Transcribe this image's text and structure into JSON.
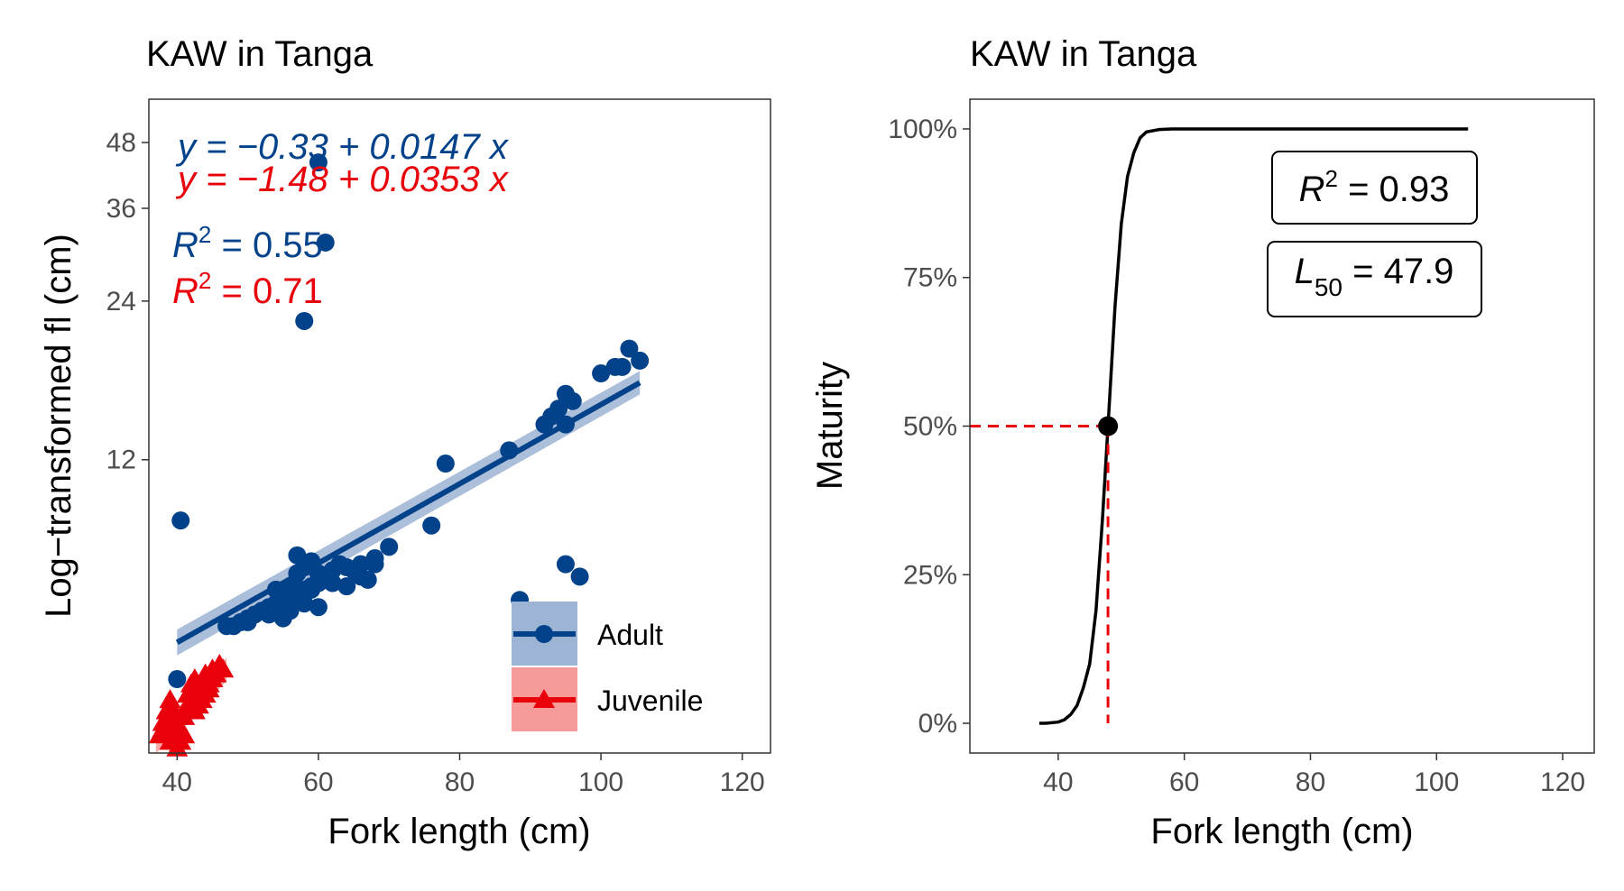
{
  "colors": {
    "adult": "#02428a",
    "juvenile": "#e8000b",
    "adult_band": "#9db4d4",
    "juvenile_band": "#f79a9a",
    "curve": "#000000",
    "ref": "#e8000b"
  },
  "chart_data": [
    {
      "type": "scatter",
      "title": "KAW in Tanga",
      "xlabel": "Fork length (cm)",
      "ylabel": "Log−transformed fl (cm)",
      "xlim": [
        36,
        124
      ],
      "xticks": [
        40,
        60,
        80,
        100,
        120
      ],
      "y_scale": "log",
      "ylim": [
        3.33,
        58
      ],
      "yticks": [
        12,
        24,
        36,
        48
      ],
      "grid": false,
      "legend_position": "bottom-right",
      "equations": [
        {
          "series": "Adult",
          "eq_text": "y = −0.33 + 0.0147 x",
          "r2_label": "R",
          "r2_sup": "2",
          "r2_value": " = 0.55"
        },
        {
          "series": "Juvenile",
          "eq_text": "y = −1.48 + 0.0353 x",
          "r2_label": "R",
          "r2_sup": "2",
          "r2_value": " = 0.71"
        }
      ],
      "series": [
        {
          "name": "Adult",
          "marker": "circle",
          "fit": {
            "from_x": 40,
            "to_x": 105.5,
            "y_start": 5.4,
            "y_end": 16.8
          },
          "x": [
            40.5,
            60,
            61,
            58,
            104,
            105.5,
            102,
            100,
            103,
            95,
            96,
            94,
            93,
            95,
            92,
            87,
            78,
            76,
            70,
            68,
            66,
            64,
            62,
            61,
            60,
            59,
            58,
            57,
            56,
            55,
            54,
            53,
            52,
            51,
            50,
            49,
            48,
            47,
            57,
            58,
            59,
            60,
            61,
            62,
            63,
            64,
            65,
            66,
            67,
            68,
            55,
            56,
            57,
            58,
            59,
            60,
            56,
            57,
            54,
            55,
            53,
            52,
            50,
            95,
            97,
            88.5,
            40
          ],
          "y": [
            9.2,
            44,
            31,
            22,
            19.5,
            18.5,
            18,
            17.5,
            18,
            16,
            15.5,
            15,
            14.5,
            14,
            14,
            12.5,
            11.8,
            9.0,
            8.2,
            7.8,
            7.6,
            7.5,
            7.4,
            7.2,
            7.0,
            6.9,
            6.8,
            6.7,
            6.6,
            6.5,
            6.4,
            6.3,
            6.2,
            6.1,
            6.0,
            5.9,
            5.8,
            5.8,
            7.9,
            7.5,
            7.7,
            7.3,
            7.1,
            7.0,
            7.6,
            6.9,
            7.4,
            7.2,
            7.1,
            7.6,
            6.0,
            6.2,
            6.6,
            6.4,
            6.8,
            6.3,
            6.9,
            7.3,
            6.8,
            6.7,
            6.1,
            6.2,
            5.9,
            7.6,
            7.2,
            6.5,
            4.6
          ]
        },
        {
          "name": "Juvenile",
          "marker": "triangle",
          "fit": {
            "from_x": 37,
            "to_x": 47,
            "y_start": 3.5,
            "y_end": 4.8
          },
          "x": [
            37.5,
            38,
            38.5,
            39,
            39.5,
            40,
            40.5,
            41,
            41,
            40.5,
            39.5,
            39,
            38.5,
            38,
            40,
            41.5,
            42,
            42.5,
            43,
            43.5,
            44,
            44.5,
            45,
            45.5,
            46,
            46.5,
            42,
            43,
            44,
            45,
            44.5,
            43.5,
            42.5,
            41.5,
            40,
            39,
            38.5,
            39.5,
            40,
            41
          ],
          "y": [
            3.6,
            3.8,
            3.7,
            3.5,
            3.6,
            3.4,
            3.7,
            3.9,
            3.6,
            3.5,
            3.9,
            4.1,
            4.0,
            3.7,
            3.8,
            4.3,
            4.5,
            4.6,
            4.4,
            4.5,
            4.7,
            4.5,
            4.8,
            4.7,
            4.9,
            4.8,
            4.2,
            4.1,
            4.3,
            4.6,
            4.4,
            4.2,
            4.0,
            4.1,
            3.9,
            4.2,
            3.8,
            3.6,
            3.7,
            4.0
          ]
        }
      ]
    },
    {
      "type": "line",
      "title": "KAW in Tanga",
      "xlabel": "Fork length (cm)",
      "ylabel": "Maturity",
      "xlim": [
        26,
        125
      ],
      "xticks": [
        40,
        60,
        80,
        100,
        120
      ],
      "ylim": [
        -0.05,
        1.05
      ],
      "yticks": [
        0,
        0.25,
        0.5,
        0.75,
        1.0
      ],
      "ytick_labels": [
        "0%",
        "25%",
        "50%",
        "75%",
        "100%"
      ],
      "grid": false,
      "L50": 47.9,
      "L50_marker_y": 0.5,
      "boxes": [
        {
          "label": "R",
          "sup": "2",
          "value": " = 0.93"
        },
        {
          "label": "L",
          "sub": "50",
          "value": " = 47.9"
        }
      ],
      "series": [
        {
          "name": "",
          "x": [
            37,
            38,
            40,
            41,
            42,
            43,
            44,
            45,
            46,
            47,
            47.9,
            49,
            50,
            51,
            52,
            53,
            54,
            56,
            58,
            60,
            70,
            80,
            90,
            100,
            105
          ],
          "y": [
            0.0,
            0.0,
            0.002,
            0.006,
            0.015,
            0.03,
            0.06,
            0.1,
            0.19,
            0.34,
            0.5,
            0.7,
            0.84,
            0.92,
            0.96,
            0.985,
            0.995,
            0.999,
            1.0,
            1.0,
            1.0,
            1.0,
            1.0,
            1.0,
            1.0
          ]
        }
      ]
    }
  ]
}
